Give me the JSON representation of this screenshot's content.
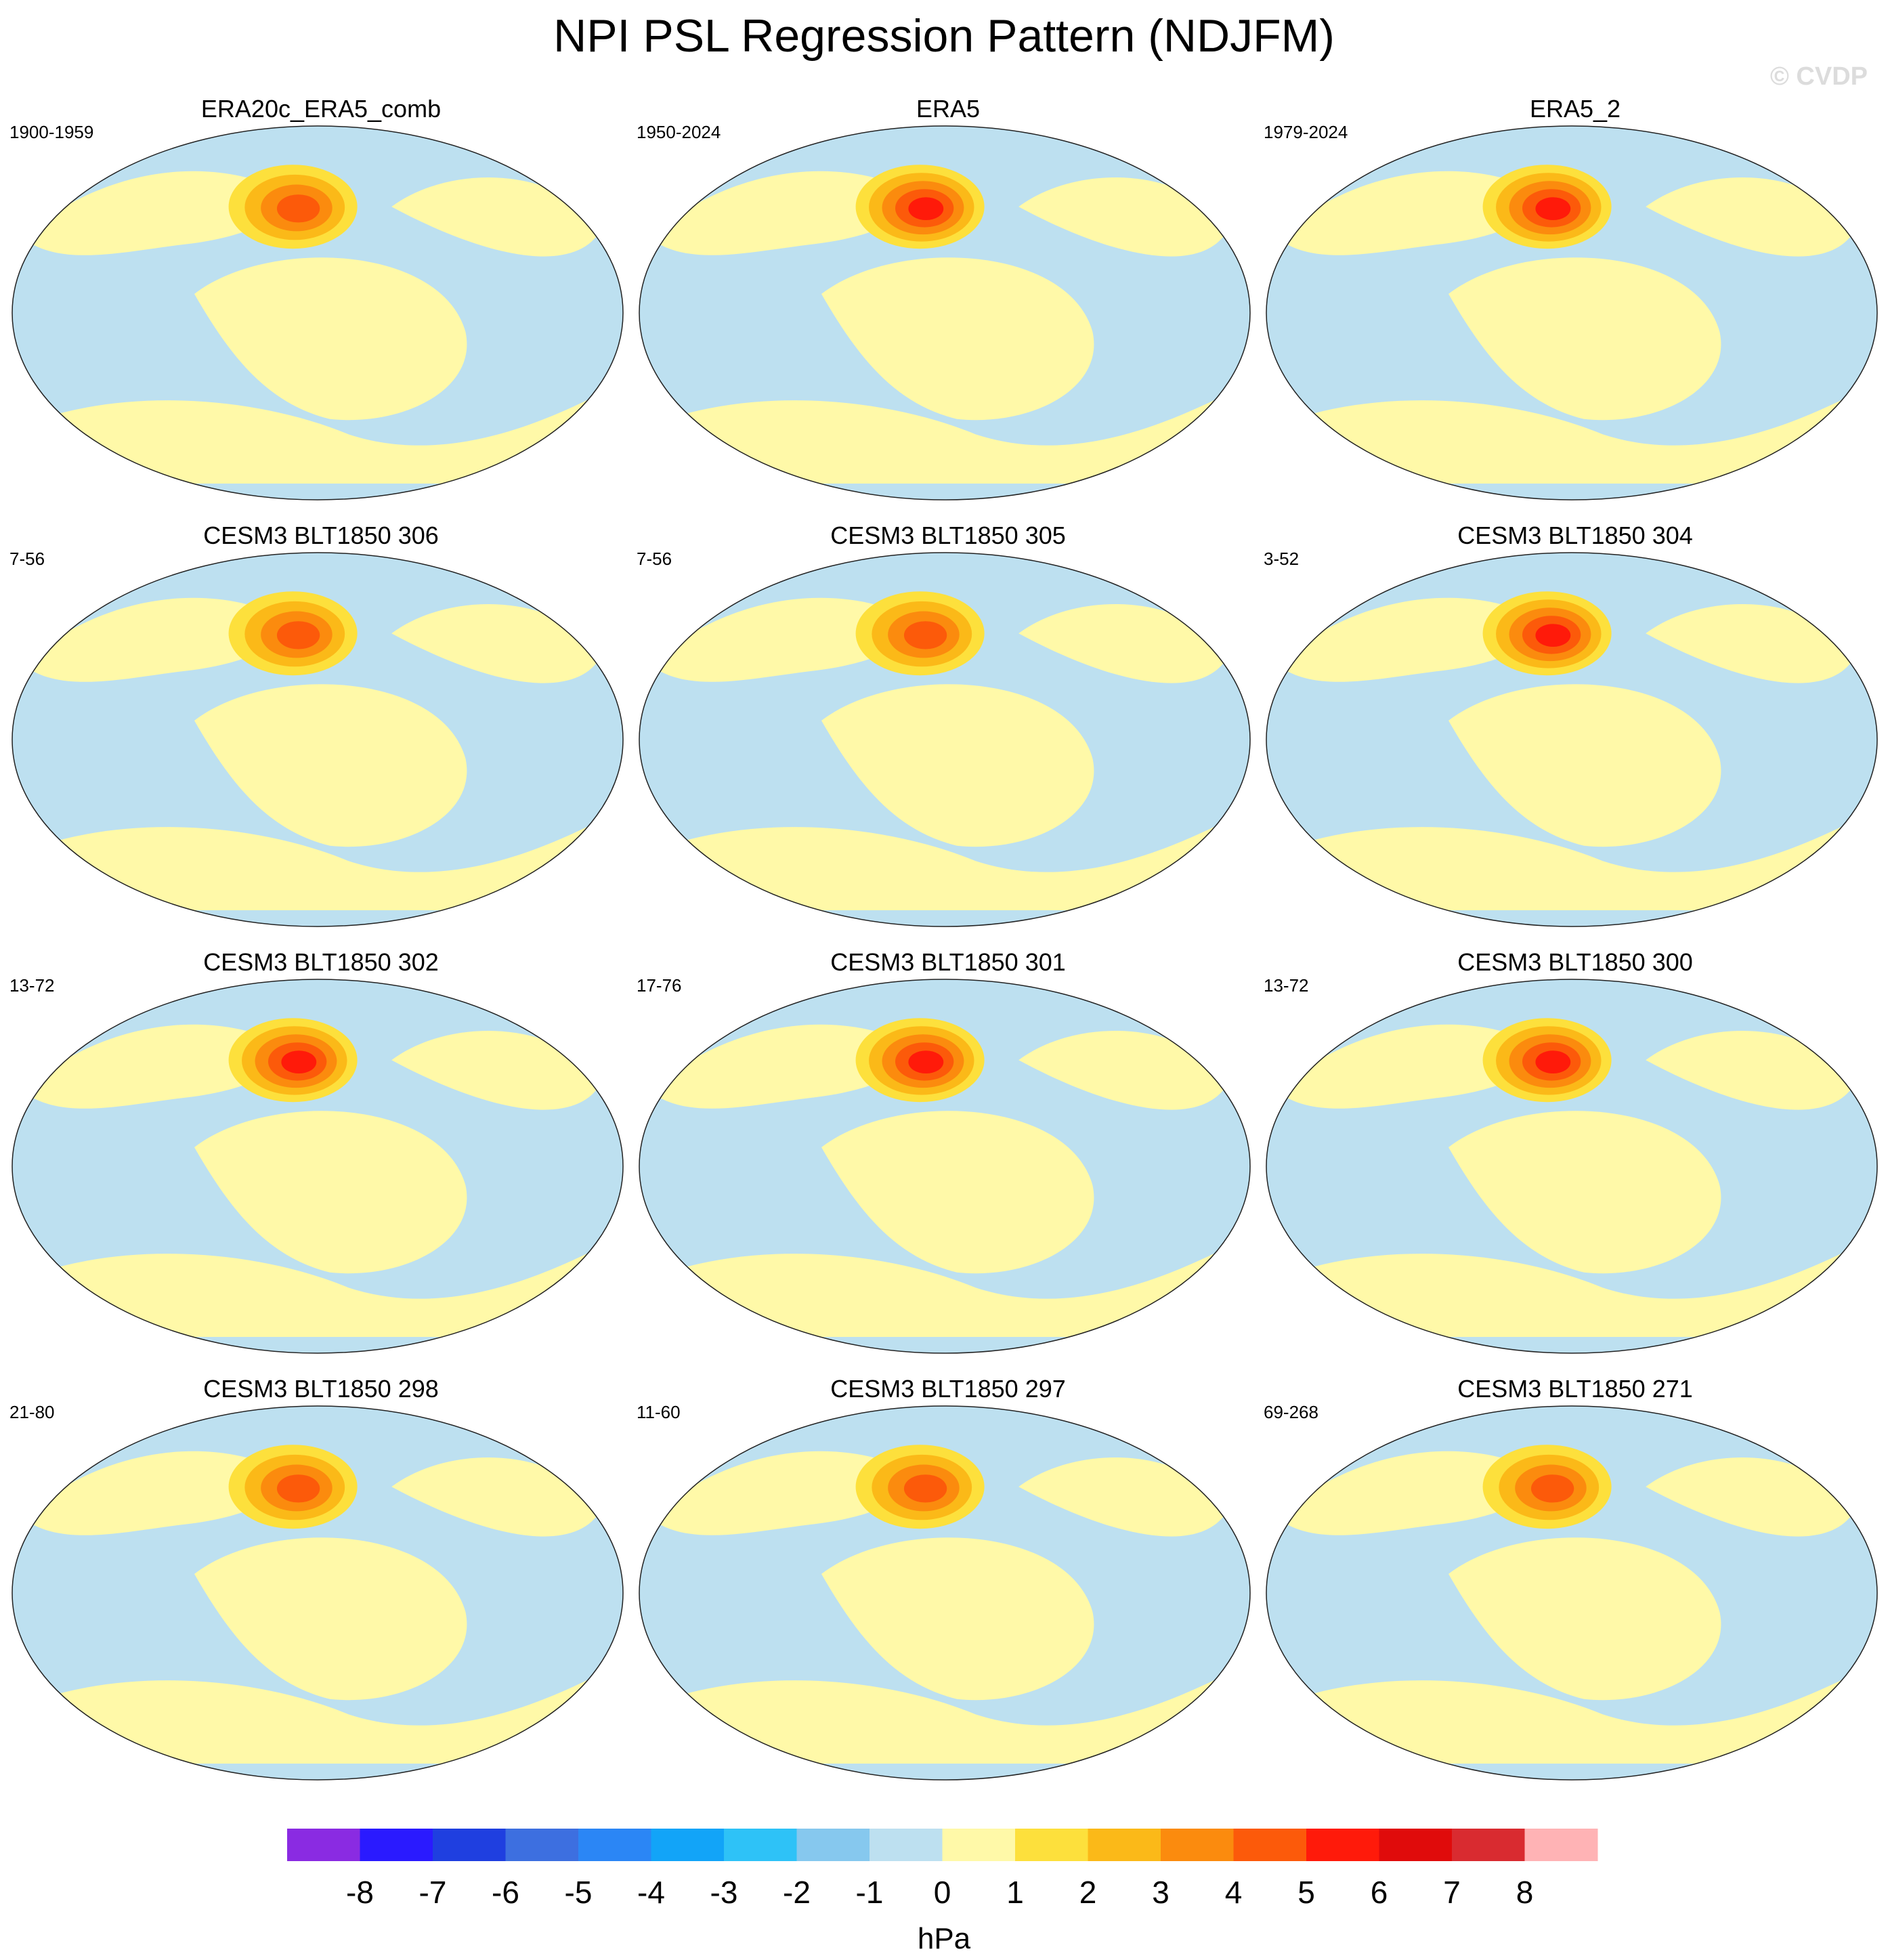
{
  "title": "NPI PSL Regression Pattern (NDJFM)",
  "watermark": "© CVDP",
  "chart_data": {
    "type": "map",
    "projection": "Robinson (Pacific-centered)",
    "variable": "PSL regression on NPI",
    "units": "hPa",
    "colorbar": {
      "levels": [
        -8,
        -7,
        -6,
        -5,
        -4,
        -3,
        -2,
        -1,
        0,
        1,
        2,
        3,
        4,
        5,
        6,
        7,
        8
      ],
      "colors": [
        "#8a2be2",
        "#2a1aff",
        "#1f3fe0",
        "#3d6fe0",
        "#2b86f5",
        "#12a4f8",
        "#2ec2f7",
        "#86c8ee",
        "#bde0f0",
        "#fff9a8",
        "#fde03c",
        "#fbb918",
        "#fb8b0e",
        "#fc5a0a",
        "#ff1a0a",
        "#e00b0b",
        "#d92b30",
        "#ffb3b5"
      ],
      "label": "hPa"
    },
    "panels": [
      {
        "title": "ERA20c_ERA5_comb",
        "years": "1900-1959",
        "max_hpa": 4
      },
      {
        "title": "ERA5",
        "years": "1950-2024",
        "max_hpa": 5
      },
      {
        "title": "ERA5_2",
        "years": "1979-2024",
        "max_hpa": 5
      },
      {
        "title": "CESM3 BLT1850 306",
        "years": "7-56",
        "max_hpa": 4
      },
      {
        "title": "CESM3 BLT1850 305",
        "years": "7-56",
        "max_hpa": 4
      },
      {
        "title": "CESM3 BLT1850 304",
        "years": "3-52",
        "max_hpa": 5
      },
      {
        "title": "CESM3 BLT1850 302",
        "years": "13-72",
        "max_hpa": 5
      },
      {
        "title": "CESM3 BLT1850 301",
        "years": "17-76",
        "max_hpa": 5
      },
      {
        "title": "CESM3 BLT1850 300",
        "years": "13-72",
        "max_hpa": 5
      },
      {
        "title": "CESM3 BLT1850 298",
        "years": "21-80",
        "max_hpa": 4
      },
      {
        "title": "CESM3 BLT1850 297",
        "years": "11-60",
        "max_hpa": 4
      },
      {
        "title": "CESM3 BLT1850 271",
        "years": "69-268",
        "max_hpa": 4
      }
    ]
  }
}
